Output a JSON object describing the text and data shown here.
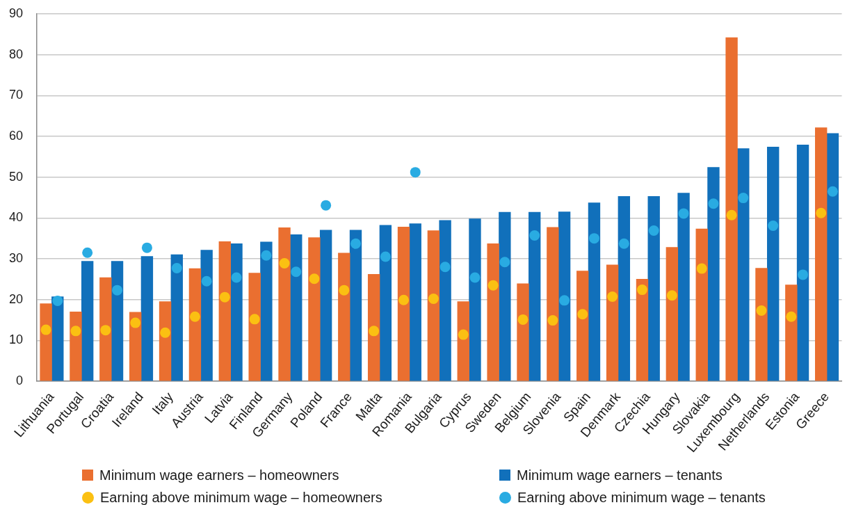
{
  "chart_data": {
    "type": "bar",
    "categories": [
      "Lithuania",
      "Portugal",
      "Croatia",
      "Ireland",
      "Italy",
      "Austria",
      "Latvia",
      "Finland",
      "Germany",
      "Poland",
      "France",
      "Malta",
      "Romania",
      "Bulgaria",
      "Cyprus",
      "Sweden",
      "Belgium",
      "Slovenia",
      "Spain",
      "Denmark",
      "Czechia",
      "Hungary",
      "Slovakia",
      "Luxembourg",
      "Netherlands",
      "Estonia",
      "Greece"
    ],
    "series": [
      {
        "name": "Minimum wage earners – homeowners",
        "color": "#ea6f30",
        "values": [
          19.0,
          17.0,
          25.4,
          16.9,
          19.5,
          27.6,
          34.2,
          26.5,
          37.6,
          35.2,
          31.4,
          26.2,
          37.8,
          36.9,
          19.5,
          33.7,
          23.9,
          37.7,
          27.0,
          28.5,
          25.0,
          32.8,
          37.3,
          84.2,
          27.7,
          23.6,
          62.1
        ]
      },
      {
        "name": "Minimum wage earners – tenants",
        "color": "#1170bb",
        "values": [
          20.7,
          29.4,
          29.4,
          30.6,
          31.0,
          32.1,
          33.7,
          34.1,
          35.9,
          37.0,
          37.0,
          38.2,
          38.6,
          39.4,
          39.8,
          41.4,
          41.4,
          41.5,
          43.7,
          45.3,
          45.3,
          46.1,
          52.4,
          57.0,
          57.4,
          57.9,
          60.7
        ]
      },
      {
        "name": "Earning above minimum wage – homeowners",
        "type": "scatter",
        "color": "#fbc012",
        "x": [
          "Lithuania",
          "Portugal",
          "Croatia",
          "Ireland",
          "Italy",
          "Austria",
          "Latvia",
          "Finland",
          "Germany",
          "Poland",
          "France",
          "Malta",
          "Romania",
          "Bulgaria",
          "Cyprus",
          "Sweden",
          "Belgium",
          "Slovenia",
          "Spain",
          "Denmark",
          "Czechia",
          "Hungary",
          "Slovakia",
          "Luxembourg",
          "Netherlands",
          "Estonia",
          "Greece"
        ],
        "values": [
          12.6,
          12.3,
          12.5,
          14.3,
          11.9,
          15.8,
          20.6,
          15.2,
          28.9,
          25.1,
          22.3,
          12.3,
          19.9,
          20.2,
          11.4,
          23.5,
          15.1,
          14.9,
          16.4,
          20.7,
          22.4,
          21.0,
          27.6,
          40.7,
          17.3,
          15.8,
          41.2
        ]
      },
      {
        "name": "Earning above minimum wage – tenants",
        "type": "scatter",
        "color": "#29abe2",
        "x": [
          "Lithuania",
          "Portugal",
          "Croatia",
          "Ireland",
          "Italy",
          "Austria",
          "Latvia",
          "Finland",
          "Germany",
          "Poland",
          "France",
          "Malta",
          "Romania",
          "Bulgaria",
          "Cyprus",
          "Sweden",
          "Belgium",
          "Slovenia",
          "Spain",
          "Denmark",
          "Czechia",
          "Hungary",
          "Slovakia",
          "Luxembourg",
          "Netherlands",
          "Estonia",
          "Greece"
        ],
        "values": [
          19.7,
          31.5,
          22.3,
          32.7,
          27.7,
          24.5,
          25.4,
          30.8,
          26.8,
          43.1,
          33.7,
          30.5,
          51.2,
          28.0,
          25.4,
          29.2,
          35.7,
          19.8,
          35.0,
          33.7,
          36.9,
          41.1,
          43.5,
          44.9,
          38.1,
          26.1,
          46.5
        ]
      }
    ],
    "ylim": [
      0,
      90
    ],
    "yticks": [
      0,
      10,
      20,
      30,
      40,
      50,
      60,
      70,
      80,
      90
    ],
    "grid": "y",
    "legend": "bottom",
    "marker": "circle"
  }
}
